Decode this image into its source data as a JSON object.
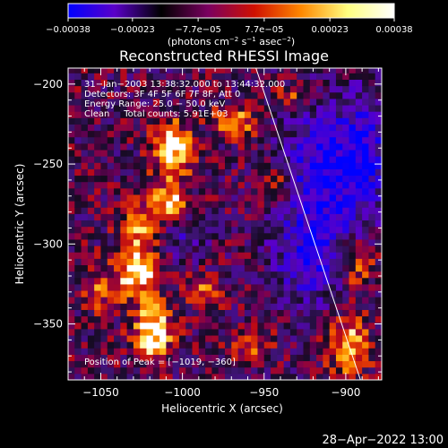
{
  "chart_data": {
    "type": "heatmap",
    "title": "Reconstructed RHESSI Image",
    "xlabel": "Heliocentric X (arcsec)",
    "ylabel": "Heliocentric Y (arcsec)",
    "xlim": [
      -1070,
      -878
    ],
    "ylim": [
      -385,
      -190
    ],
    "xticks": [
      -1050,
      -1000,
      -950,
      -900
    ],
    "xtick_labels": [
      "−1050",
      "−1000",
      "−950",
      "−900"
    ],
    "yticks": [
      -200,
      -250,
      -300,
      -350
    ],
    "ytick_labels": [
      "−200",
      "−250",
      "−300",
      "−350"
    ],
    "colorbar": {
      "min": -0.00038,
      "max": 0.00038,
      "tick_values": [
        -0.00038,
        -0.00023,
        -7.7e-05,
        7.7e-05,
        0.00023,
        0.00038
      ],
      "tick_labels": [
        "−0.00038",
        "−0.00023",
        "−7.7e−05",
        "7.7e−05",
        "0.00023",
        "0.00038"
      ],
      "unit_prefix": "(photons cm",
      "unit_sup1": "−2",
      "unit_mid": " s",
      "unit_sup2": "−1",
      "unit_mid2": " asec",
      "unit_sup3": "−2",
      "unit_suffix": ")",
      "colors": [
        "#0000ff",
        "#5a00c8",
        "#000000",
        "#7a0060",
        "#d01000",
        "#ff8800",
        "#ffff80",
        "#ffffff"
      ]
    },
    "annotations": [
      "31−Jan−2003 13:38:32.000 to 13:44:32.000",
      "Detectors: 3F 4F 5F 6F 7F 8F, Att 0",
      "Energy Range: 25.0 − 50.0 keV",
      "Clean     Total counts: 5.91E+03"
    ],
    "peak_label": "Position of Peak = [−1019, −360]",
    "peak": [
      -1019,
      -360
    ],
    "limb_line": [
      [
        -955,
        -190
      ],
      [
        -891,
        -385
      ]
    ],
    "hot_spots": [
      {
        "x": -1020,
        "y": -357,
        "level": 1.0,
        "rx": 12,
        "ry": 16
      },
      {
        "x": -1030,
        "y": -320,
        "level": 0.85,
        "rx": 14,
        "ry": 18
      },
      {
        "x": -1008,
        "y": -243,
        "level": 0.9,
        "rx": 12,
        "ry": 18
      },
      {
        "x": -1010,
        "y": -275,
        "level": 0.75,
        "rx": 10,
        "ry": 12
      },
      {
        "x": -1030,
        "y": -290,
        "level": 0.6,
        "rx": 10,
        "ry": 14
      },
      {
        "x": -970,
        "y": -225,
        "level": 0.6,
        "rx": 14,
        "ry": 10
      },
      {
        "x": -988,
        "y": -333,
        "level": 0.55,
        "rx": 10,
        "ry": 10
      },
      {
        "x": -960,
        "y": -365,
        "level": 0.5,
        "rx": 12,
        "ry": 10
      },
      {
        "x": -900,
        "y": -365,
        "level": 0.75,
        "rx": 12,
        "ry": 18
      },
      {
        "x": -895,
        "y": -315,
        "level": 0.55,
        "rx": 10,
        "ry": 14
      },
      {
        "x": -945,
        "y": -265,
        "level": 0.5,
        "rx": 10,
        "ry": 10
      },
      {
        "x": -1055,
        "y": -330,
        "level": 0.45,
        "rx": 10,
        "ry": 14
      },
      {
        "x": -935,
        "y": -210,
        "level": 0.45,
        "rx": 10,
        "ry": 8
      }
    ],
    "cold_regions": [
      {
        "x": -915,
        "y": -255,
        "level": 0.7,
        "rx": 26,
        "ry": 40
      },
      {
        "x": -925,
        "y": -310,
        "level": 0.55,
        "rx": 22,
        "ry": 30
      },
      {
        "x": -890,
        "y": -245,
        "level": 0.5,
        "rx": 14,
        "ry": 40
      },
      {
        "x": -1000,
        "y": -300,
        "level": 0.35,
        "rx": 12,
        "ry": 12
      }
    ]
  },
  "footer": {
    "timestamp": "28−Apr−2022 13:00"
  }
}
